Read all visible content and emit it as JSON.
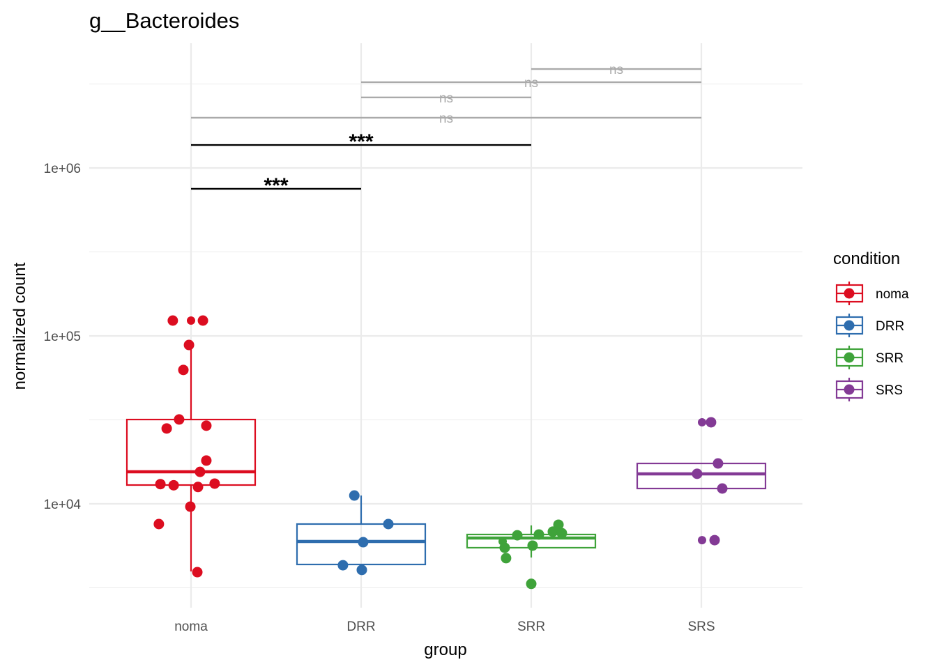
{
  "chart_data": {
    "type": "box",
    "title": "g__Bacteroides",
    "xlabel": "group",
    "ylabel": "normalized count",
    "yscale": "log10",
    "ylim": [
      2600,
      5500000
    ],
    "y_ticks": [
      {
        "value": 10000,
        "label": "1e+04"
      },
      {
        "value": 100000,
        "label": "1e+05"
      },
      {
        "value": 1000000,
        "label": "1e+06"
      }
    ],
    "y_minor_gridlines": [
      3162,
      31623,
      316228,
      3162278
    ],
    "grid": true,
    "categories": [
      "noma",
      "DRR",
      "SRR",
      "SRS"
    ],
    "legend": {
      "title": "condition",
      "position": "right",
      "entries": [
        {
          "label": "noma",
          "color": "#DC0D20"
        },
        {
          "label": "DRR",
          "color": "#2E6DAE"
        },
        {
          "label": "SRR",
          "color": "#3FA33A"
        },
        {
          "label": "SRS",
          "color": "#833A95"
        }
      ]
    },
    "boxes": [
      {
        "group": "noma",
        "color": "#DC0D20",
        "whisker_low": 3960,
        "q1": 12940,
        "median": 15520,
        "q3": 31770,
        "whisker_high": 88300
      },
      {
        "group": "DRR",
        "color": "#2E6DAE",
        "whisker_low": 4355,
        "q1": 4355,
        "median": 5970,
        "q3": 7580,
        "whisker_high": 11210
      },
      {
        "group": "SRR",
        "color": "#3FA33A",
        "whisker_low": 4790,
        "q1": 5480,
        "median": 6260,
        "q3": 6570,
        "whisker_high": 7440
      },
      {
        "group": "SRS",
        "color": "#833A95",
        "whisker_low": 12340,
        "q1": 12340,
        "median": 15080,
        "q3": 17400,
        "whisker_high": 17400
      }
    ],
    "points": [
      {
        "group": "noma",
        "values": [
          123400,
          123400,
          123400,
          88300,
          62700,
          31800,
          29200,
          28100,
          18100,
          15500,
          13200,
          13100,
          12900,
          12600,
          9620,
          7580,
          3920
        ],
        "jitter": [
          -0.107,
          0.0,
          0.07,
          -0.012,
          -0.045,
          -0.07,
          0.09,
          -0.143,
          0.09,
          0.053,
          0.139,
          -0.18,
          -0.102,
          0.041,
          -0.004,
          -0.189,
          0.037
        ],
        "small": [
          false,
          true,
          false,
          false,
          false,
          false,
          false,
          false,
          false,
          false,
          false,
          false,
          false,
          false,
          false,
          false,
          false
        ]
      },
      {
        "group": "DRR",
        "values": [
          11210,
          7580,
          5910,
          4310,
          4040
        ],
        "jitter": [
          -0.04,
          0.16,
          0.012,
          -0.107,
          0.004
        ],
        "small": [
          false,
          false,
          false,
          false,
          false
        ]
      },
      {
        "group": "SRR",
        "values": [
          7510,
          6830,
          6690,
          6570,
          6500,
          5970,
          5640,
          5480,
          4750,
          3340
        ],
        "jitter": [
          0.16,
          0.127,
          0.18,
          0.045,
          -0.082,
          -0.168,
          0.008,
          -0.156,
          -0.148,
          0.0
        ],
        "small": [
          false,
          false,
          false,
          false,
          false,
          true,
          false,
          false,
          false,
          false
        ]
      },
      {
        "group": "SRS",
        "values": [
          30600,
          30600,
          17400,
          15100,
          12340,
          6080,
          6080
        ],
        "jitter": [
          0.004,
          0.057,
          0.098,
          -0.025,
          0.123,
          0.004,
          0.078
        ],
        "small": [
          true,
          false,
          false,
          false,
          false,
          true,
          false
        ]
      }
    ],
    "comparisons": [
      {
        "from": "noma",
        "to": "DRR",
        "y": 751000,
        "label": "***",
        "significant": true
      },
      {
        "from": "noma",
        "to": "SRR",
        "y": 1370000,
        "label": "***",
        "significant": true
      },
      {
        "from": "noma",
        "to": "SRS",
        "y": 1990000,
        "label": "ns",
        "significant": false
      },
      {
        "from": "DRR",
        "to": "SRR",
        "y": 2630000,
        "label": "ns",
        "significant": false
      },
      {
        "from": "DRR",
        "to": "SRS",
        "y": 3240000,
        "label": "ns",
        "significant": false
      },
      {
        "from": "SRR",
        "to": "SRS",
        "y": 3880000,
        "label": "ns",
        "significant": false
      }
    ]
  }
}
